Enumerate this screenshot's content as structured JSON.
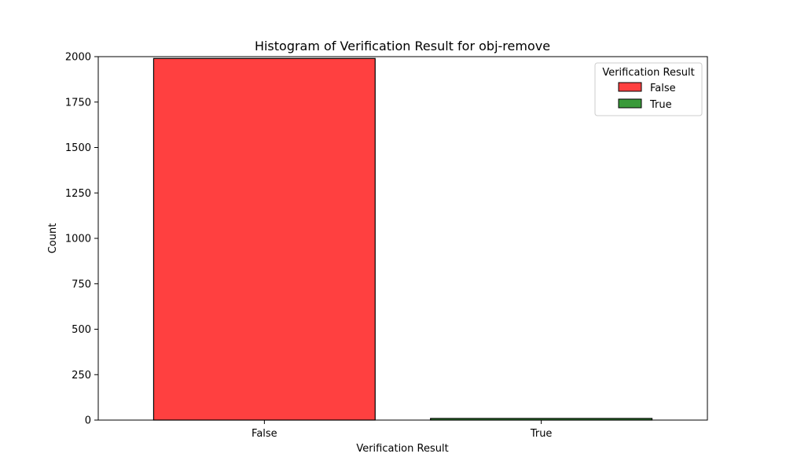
{
  "chart_data": {
    "type": "bar",
    "title": "Histogram of Verification Result for obj-remove",
    "xlabel": "Verification Result",
    "ylabel": "Count",
    "categories": [
      "False",
      "True"
    ],
    "values": [
      1990,
      9
    ],
    "colors": [
      "#ff4040",
      "#3a9a3a"
    ],
    "ylim": [
      0,
      2000
    ],
    "yticks": [
      0,
      250,
      500,
      750,
      1000,
      1250,
      1500,
      1750,
      2000
    ],
    "grid": false,
    "legend": {
      "title": "Verification Result",
      "placement": "top-right",
      "entries": [
        "False",
        "True"
      ]
    }
  }
}
